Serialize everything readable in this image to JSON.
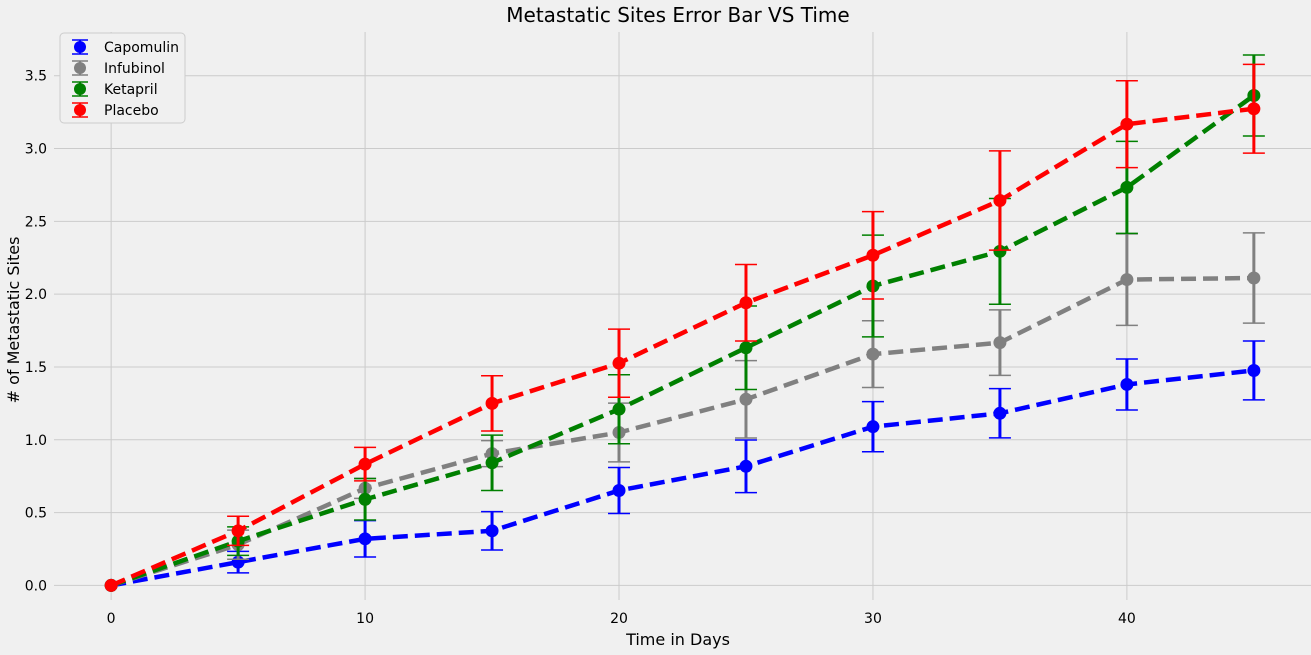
{
  "chart_data": {
    "type": "line",
    "title": "Metastatic Sites Error Bar VS Time",
    "xlabel": "Time in Days",
    "ylabel": "# of Metastatic Sites",
    "xlim": [
      -2.25,
      47.25
    ],
    "ylim": [
      -0.1,
      3.8
    ],
    "xticks": [
      0,
      10,
      20,
      30,
      40
    ],
    "xtick_labels": [
      "0",
      "10",
      "20",
      "30",
      "40"
    ],
    "yticks": [
      0.0,
      0.5,
      1.0,
      1.5,
      2.0,
      2.5,
      3.0,
      3.5
    ],
    "ytick_labels": [
      "0.0",
      "0.5",
      "1.0",
      "1.5",
      "2.0",
      "2.5",
      "3.0",
      "3.5"
    ],
    "grid": true,
    "legend_position": "top-left",
    "x": [
      0,
      5,
      10,
      15,
      20,
      25,
      30,
      35,
      40,
      45
    ],
    "series": [
      {
        "name": "Capomulin",
        "color": "#0000ff",
        "values": [
          0.0,
          0.16,
          0.32,
          0.375,
          0.652,
          0.818,
          1.09,
          1.182,
          1.38,
          1.476
        ],
        "errors": [
          0.0,
          0.074,
          0.125,
          0.132,
          0.158,
          0.181,
          0.172,
          0.169,
          0.175,
          0.202
        ]
      },
      {
        "name": "Infubinol",
        "color": "#808080",
        "values": [
          0.0,
          0.28,
          0.667,
          0.905,
          1.05,
          1.278,
          1.588,
          1.667,
          2.1,
          2.111
        ],
        "errors": [
          0.0,
          0.1,
          0.069,
          0.089,
          0.202,
          0.266,
          0.229,
          0.225,
          0.314,
          0.31
        ]
      },
      {
        "name": "Ketapril",
        "color": "#008000",
        "values": [
          0.0,
          0.304,
          0.591,
          0.842,
          1.21,
          1.632,
          2.056,
          2.294,
          2.733,
          3.364
        ],
        "errors": [
          0.0,
          0.098,
          0.142,
          0.19,
          0.237,
          0.287,
          0.349,
          0.363,
          0.316,
          0.278
        ]
      },
      {
        "name": "Placebo",
        "color": "#ff0000",
        "values": [
          0.0,
          0.375,
          0.833,
          1.25,
          1.526,
          1.941,
          2.267,
          2.643,
          3.167,
          3.273
        ],
        "errors": [
          0.0,
          0.1,
          0.115,
          0.19,
          0.234,
          0.263,
          0.3,
          0.341,
          0.298,
          0.305
        ]
      }
    ]
  }
}
